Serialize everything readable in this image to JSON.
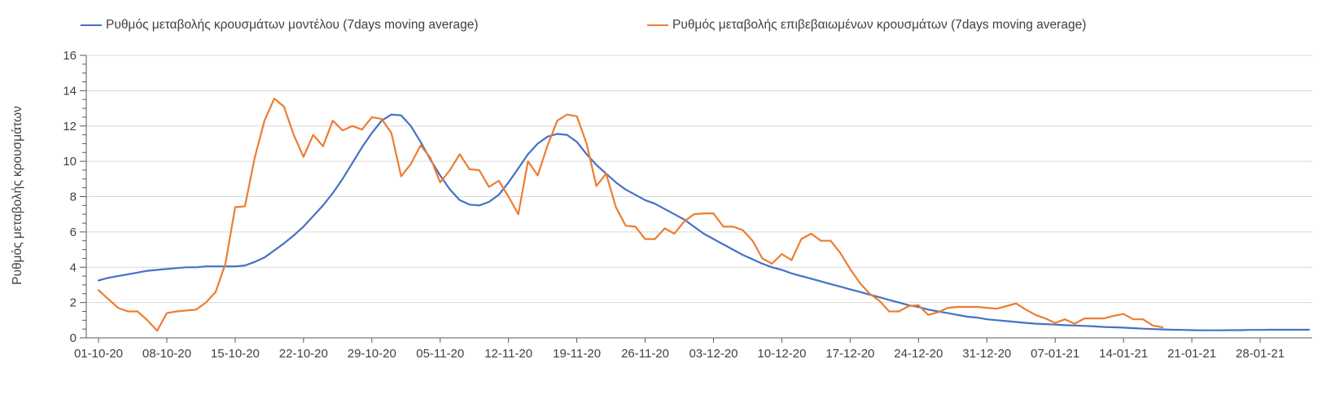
{
  "chart_data": {
    "type": "line",
    "title": "",
    "xlabel": "",
    "ylabel": "Ρυθμός μεταβολής κρουσμάτων",
    "ylim": [
      0,
      16
    ],
    "y_tick_step": 2,
    "y_minor_tick_step": 0.5,
    "y_tick_labels": [
      "0",
      "2",
      "4",
      "6",
      "8",
      "10",
      "12",
      "14",
      "16"
    ],
    "grid": true,
    "gridline_color": "#d9d9d9",
    "axis_color": "#595959",
    "text_color": "#404040",
    "legend_position": "top",
    "x_tick_labels": [
      "01-10-20",
      "08-10-20",
      "15-10-20",
      "22-10-20",
      "29-10-20",
      "05-11-20",
      "12-11-20",
      "19-11-20",
      "26-11-20",
      "03-12-20",
      "10-12-20",
      "17-12-20",
      "24-12-20",
      "31-12-20",
      "07-01-21",
      "14-01-21",
      "21-01-21",
      "28-01-21"
    ],
    "x_start_date": "01-10-20",
    "x_days_per_point": 1,
    "x_days_per_tick": 7,
    "x_total_days": 124,
    "series": [
      {
        "name": "Ρυθμός μεταβολής κρουσμάτων μοντέλου (7days moving average)",
        "color": "#4472C4",
        "start_date": "01-10-20",
        "values": [
          3.25,
          3.4,
          3.5,
          3.6,
          3.7,
          3.8,
          3.85,
          3.9,
          3.95,
          4.0,
          4.0,
          4.05,
          4.05,
          4.05,
          4.05,
          4.1,
          4.3,
          4.55,
          4.95,
          5.35,
          5.8,
          6.3,
          6.9,
          7.5,
          8.2,
          9.0,
          9.9,
          10.8,
          11.6,
          12.3,
          12.65,
          12.6,
          12.0,
          11.1,
          10.1,
          9.2,
          8.4,
          7.8,
          7.55,
          7.5,
          7.7,
          8.1,
          8.8,
          9.6,
          10.4,
          11.0,
          11.4,
          11.55,
          11.5,
          11.1,
          10.4,
          9.8,
          9.3,
          8.8,
          8.4,
          8.1,
          7.8,
          7.6,
          7.3,
          7.0,
          6.7,
          6.3,
          5.9,
          5.6,
          5.3,
          5.0,
          4.7,
          4.45,
          4.2,
          4.0,
          3.85,
          3.65,
          3.5,
          3.35,
          3.2,
          3.05,
          2.9,
          2.75,
          2.6,
          2.45,
          2.3,
          2.15,
          2.0,
          1.85,
          1.75,
          1.6,
          1.5,
          1.4,
          1.3,
          1.2,
          1.15,
          1.05,
          1.0,
          0.95,
          0.9,
          0.85,
          0.8,
          0.78,
          0.75,
          0.72,
          0.7,
          0.68,
          0.65,
          0.62,
          0.6,
          0.58,
          0.55,
          0.52,
          0.5,
          0.48,
          0.46,
          0.45,
          0.44,
          0.43,
          0.43,
          0.43,
          0.44,
          0.44,
          0.45,
          0.45,
          0.46,
          0.46,
          0.46,
          0.46,
          0.46
        ]
      },
      {
        "name": "Ρυθμός μεταβολής επιβεβαιωμένων κρουσμάτων (7days moving average)",
        "color": "#ED7D31",
        "start_date": "01-10-20",
        "values": [
          2.7,
          2.2,
          1.7,
          1.5,
          1.5,
          1.0,
          0.4,
          1.4,
          1.5,
          1.55,
          1.6,
          2.0,
          2.6,
          4.2,
          7.4,
          7.45,
          10.2,
          12.3,
          13.55,
          13.1,
          11.5,
          10.25,
          11.5,
          10.85,
          12.3,
          11.75,
          12.0,
          11.8,
          12.5,
          12.4,
          11.6,
          9.15,
          9.85,
          10.9,
          10.2,
          8.8,
          9.5,
          10.4,
          9.55,
          9.5,
          8.55,
          8.9,
          8.0,
          7.0,
          10.0,
          9.2,
          10.9,
          12.3,
          12.65,
          12.55,
          11.0,
          8.6,
          9.3,
          7.4,
          6.35,
          6.3,
          5.6,
          5.6,
          6.2,
          5.9,
          6.6,
          7.0,
          7.05,
          7.05,
          6.3,
          6.3,
          6.1,
          5.5,
          4.5,
          4.2,
          4.75,
          4.4,
          5.6,
          5.9,
          5.5,
          5.5,
          4.8,
          3.9,
          3.1,
          2.5,
          2.1,
          1.5,
          1.5,
          1.8,
          1.85,
          1.3,
          1.45,
          1.7,
          1.75,
          1.75,
          1.75,
          1.7,
          1.65,
          1.8,
          1.95,
          1.6,
          1.3,
          1.1,
          0.85,
          1.05,
          0.8,
          1.1,
          1.1,
          1.1,
          1.25,
          1.35,
          1.05,
          1.05,
          0.7,
          0.6
        ]
      }
    ]
  }
}
